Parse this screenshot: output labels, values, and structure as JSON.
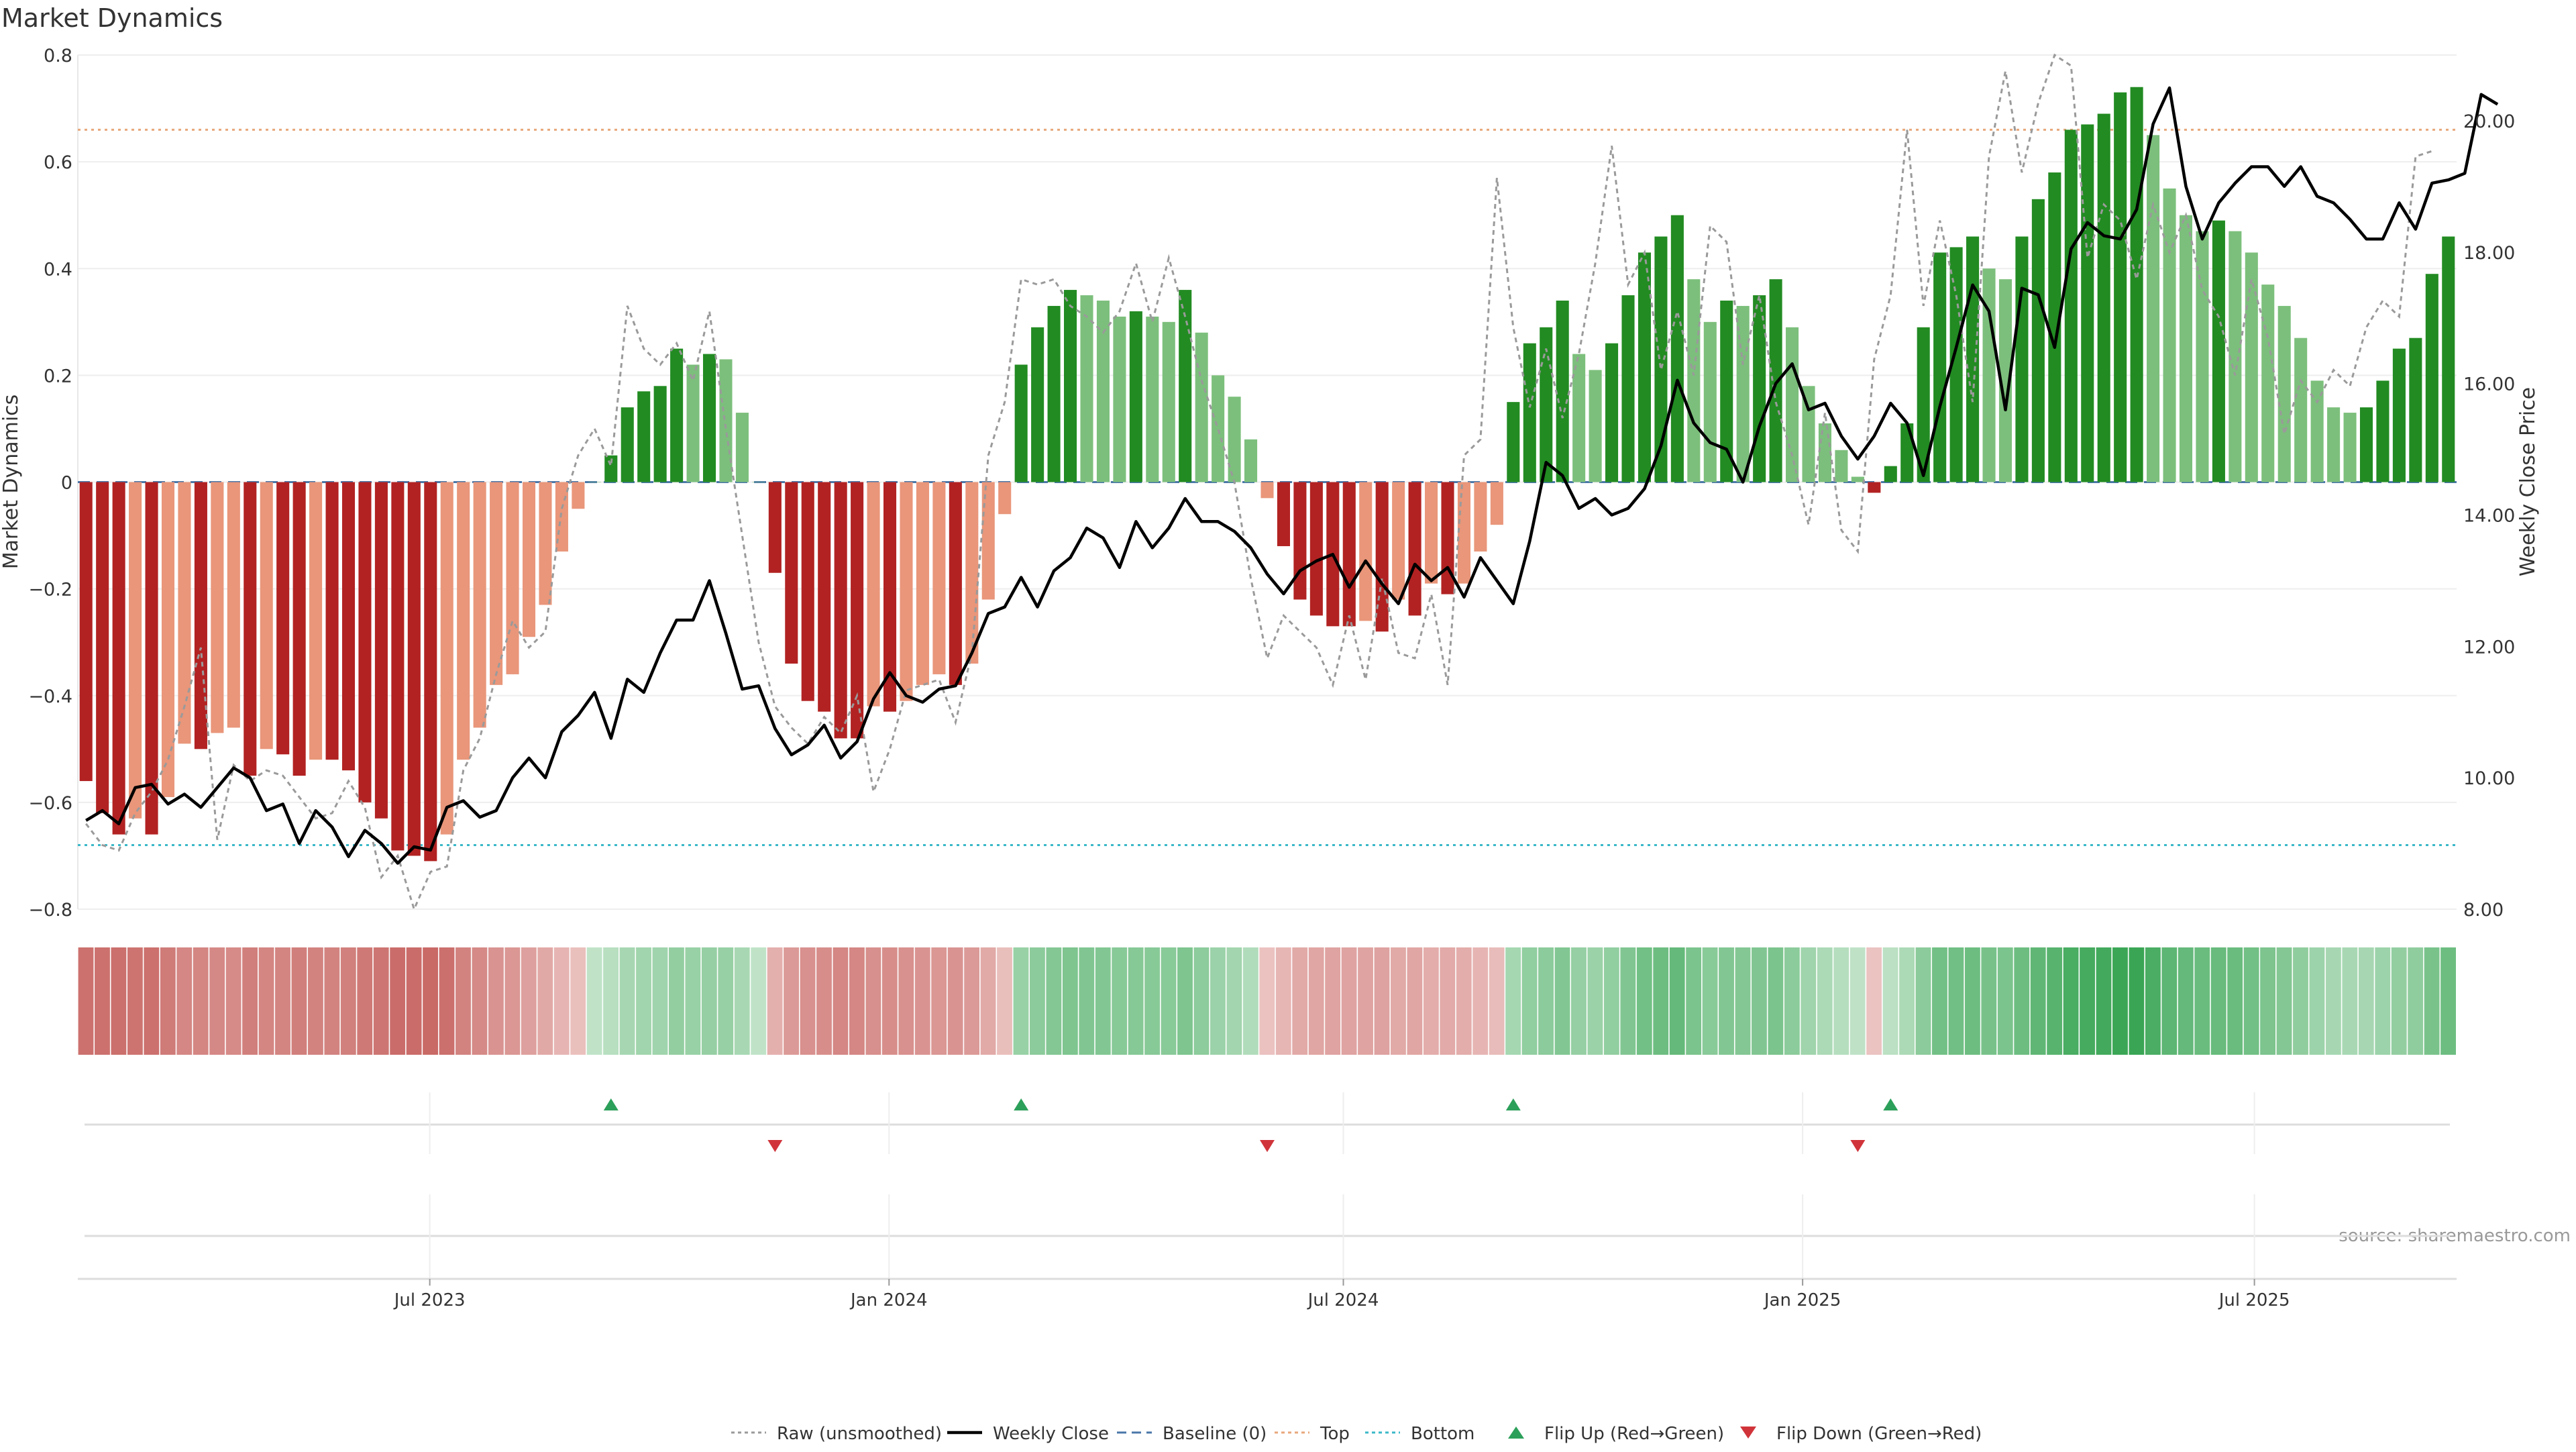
{
  "chart_data": {
    "type": "bar",
    "title": "Market Dynamics",
    "ylabel": "Market Dynamics",
    "y2label": "Weekly Close Price",
    "ylim": [
      -0.8,
      0.8
    ],
    "y2lim": [
      8.0,
      21.0
    ],
    "yticks": [
      "0.8",
      "0.6",
      "0.4",
      "0.2",
      "0",
      "−0.2",
      "−0.4",
      "−0.6",
      "−0.8"
    ],
    "y2ticks": [
      "20.00",
      "18.00",
      "16.00",
      "14.00",
      "12.00",
      "10.00",
      "8.00"
    ],
    "xticks": [
      "Jul 2023",
      "Jan 2024",
      "Jul 2024",
      "Jan 2025",
      "Jul 2025"
    ],
    "x_start": "2023-02-10",
    "x_end": "2025-09-20",
    "xtick_dates": [
      "2023-07-01",
      "2024-01-01",
      "2024-07-01",
      "2025-01-01",
      "2025-07-01"
    ],
    "grid": true,
    "legend_position": "bottom-center",
    "source": "source: sharemaestro.com",
    "top_line": 0.66,
    "bottom_line": -0.68,
    "baseline": 0,
    "bars": [
      -0.56,
      -0.62,
      -0.66,
      -0.63,
      -0.66,
      -0.59,
      -0.49,
      -0.5,
      -0.47,
      -0.46,
      -0.55,
      -0.5,
      -0.51,
      -0.55,
      -0.52,
      -0.52,
      -0.54,
      -0.6,
      -0.63,
      -0.69,
      -0.7,
      -0.71,
      -0.66,
      -0.52,
      -0.46,
      -0.38,
      -0.36,
      -0.29,
      -0.23,
      -0.13,
      -0.05,
      0.0,
      0.05,
      0.14,
      0.17,
      0.18,
      0.25,
      0.22,
      0.24,
      0.23,
      0.13,
      0.0,
      -0.17,
      -0.34,
      -0.41,
      -0.43,
      -0.48,
      -0.48,
      -0.42,
      -0.43,
      -0.41,
      -0.38,
      -0.36,
      -0.38,
      -0.34,
      -0.22,
      -0.06,
      0.22,
      0.29,
      0.33,
      0.36,
      0.35,
      0.34,
      0.31,
      0.32,
      0.31,
      0.3,
      0.36,
      0.28,
      0.2,
      0.16,
      0.08,
      -0.03,
      -0.12,
      -0.22,
      -0.25,
      -0.27,
      -0.27,
      -0.26,
      -0.28,
      -0.22,
      -0.25,
      -0.19,
      -0.21,
      -0.19,
      -0.13,
      -0.08,
      0.15,
      0.26,
      0.29,
      0.34,
      0.24,
      0.21,
      0.26,
      0.35,
      0.43,
      0.46,
      0.5,
      0.38,
      0.3,
      0.34,
      0.33,
      0.35,
      0.38,
      0.29,
      0.18,
      0.11,
      0.06,
      0.01,
      -0.02,
      0.03,
      0.11,
      0.29,
      0.43,
      0.44,
      0.46,
      0.4,
      0.38,
      0.46,
      0.53,
      0.58,
      0.66,
      0.67,
      0.69,
      0.73,
      0.74,
      0.65,
      0.55,
      0.5,
      0.47,
      0.49,
      0.47,
      0.43,
      0.37,
      0.33,
      0.27,
      0.19,
      0.14,
      0.13,
      0.14,
      0.19,
      0.25,
      0.27,
      0.39,
      0.46
    ],
    "raw": [
      -0.64,
      -0.68,
      -0.69,
      -0.62,
      -0.58,
      -0.52,
      -0.42,
      -0.31,
      -0.67,
      -0.53,
      -0.56,
      -0.54,
      -0.55,
      -0.59,
      -0.63,
      -0.62,
      -0.56,
      -0.61,
      -0.74,
      -0.7,
      -0.8,
      -0.73,
      -0.72,
      -0.54,
      -0.48,
      -0.36,
      -0.26,
      -0.31,
      -0.28,
      -0.05,
      0.05,
      0.1,
      0.03,
      0.33,
      0.25,
      0.22,
      0.26,
      0.19,
      0.32,
      0.1,
      -0.1,
      -0.3,
      -0.42,
      -0.46,
      -0.49,
      -0.44,
      -0.47,
      -0.4,
      -0.58,
      -0.5,
      -0.39,
      -0.38,
      -0.37,
      -0.45,
      -0.32,
      0.05,
      0.15,
      0.38,
      0.37,
      0.38,
      0.33,
      0.31,
      0.28,
      0.32,
      0.41,
      0.3,
      0.42,
      0.31,
      0.19,
      0.1,
      0.0,
      -0.18,
      -0.33,
      -0.25,
      -0.28,
      -0.31,
      -0.38,
      -0.25,
      -0.37,
      -0.18,
      -0.32,
      -0.33,
      -0.21,
      -0.38,
      0.05,
      0.08,
      0.57,
      0.29,
      0.14,
      0.25,
      0.12,
      0.24,
      0.41,
      0.63,
      0.37,
      0.43,
      0.21,
      0.32,
      0.2,
      0.48,
      0.45,
      0.22,
      0.35,
      0.15,
      0.05,
      -0.08,
      0.13,
      -0.09,
      -0.13,
      0.23,
      0.35,
      0.66,
      0.33,
      0.49,
      0.35,
      0.15,
      0.61,
      0.77,
      0.58,
      0.71,
      0.8,
      0.78,
      0.42,
      0.52,
      0.49,
      0.38,
      0.52,
      0.43,
      0.5,
      0.36,
      0.31,
      0.2,
      0.38,
      0.27,
      0.09,
      0.19,
      0.15,
      0.21,
      0.18,
      0.29,
      0.34,
      0.31,
      0.61,
      0.62
    ],
    "close": [
      9.35,
      9.5,
      9.3,
      9.85,
      9.9,
      9.6,
      9.75,
      9.55,
      9.85,
      10.15,
      10.0,
      9.5,
      9.6,
      9.0,
      9.5,
      9.25,
      8.8,
      9.2,
      9.0,
      8.7,
      8.95,
      8.9,
      9.55,
      9.65,
      9.4,
      9.5,
      10.0,
      10.3,
      10.0,
      10.7,
      10.95,
      11.3,
      10.6,
      11.5,
      11.3,
      11.9,
      12.4,
      12.4,
      13.0,
      12.2,
      11.35,
      11.4,
      10.75,
      10.35,
      10.5,
      10.8,
      10.3,
      10.55,
      11.2,
      11.6,
      11.25,
      11.15,
      11.35,
      11.4,
      11.9,
      12.5,
      12.6,
      13.05,
      12.6,
      13.15,
      13.35,
      13.8,
      13.65,
      13.2,
      13.9,
      13.5,
      13.8,
      14.25,
      13.9,
      13.9,
      13.75,
      13.5,
      13.1,
      12.8,
      13.15,
      13.3,
      13.4,
      12.9,
      13.3,
      12.95,
      12.65,
      13.25,
      13.0,
      13.2,
      12.75,
      13.35,
      13.0,
      12.65,
      13.6,
      14.8,
      14.6,
      14.1,
      14.25,
      14.0,
      14.1,
      14.4,
      15.05,
      16.05,
      15.4,
      15.1,
      15.0,
      14.5,
      15.35,
      16.0,
      16.3,
      15.6,
      15.7,
      15.2,
      14.85,
      15.2,
      15.7,
      15.4,
      14.6,
      15.65,
      16.55,
      17.5,
      17.1,
      15.6,
      17.45,
      17.35,
      16.55,
      18.05,
      18.45,
      18.25,
      18.2,
      18.65,
      19.95,
      20.5,
      19.0,
      18.2,
      18.75,
      19.05,
      19.3,
      19.3,
      19.0,
      19.3,
      18.85,
      18.75,
      18.5,
      18.2,
      18.2,
      18.75,
      18.35,
      19.05,
      19.1,
      19.2,
      20.4,
      20.25
    ],
    "flip_up": [
      32,
      57,
      87,
      110
    ],
    "flip_down": [
      42,
      72,
      108
    ],
    "heat_strengths": [
      0.92,
      0.92,
      0.93,
      0.89,
      0.92,
      0.82,
      0.69,
      0.7,
      0.66,
      0.64,
      0.77,
      0.7,
      0.71,
      0.77,
      0.73,
      0.73,
      0.76,
      0.84,
      0.88,
      0.97,
      0.98,
      1.0,
      0.93,
      0.73,
      0.65,
      0.54,
      0.51,
      0.41,
      0.32,
      0.18,
      0.07,
      0.0,
      0.07,
      0.19,
      0.23,
      0.24,
      0.34,
      0.3,
      0.32,
      0.31,
      0.18,
      0.0,
      0.24,
      0.48,
      0.58,
      0.61,
      0.68,
      0.68,
      0.59,
      0.61,
      0.58,
      0.54,
      0.51,
      0.54,
      0.48,
      0.31,
      0.08,
      0.3,
      0.39,
      0.45,
      0.49,
      0.47,
      0.46,
      0.42,
      0.43,
      0.42,
      0.41,
      0.49,
      0.38,
      0.27,
      0.22,
      0.11,
      0.04,
      0.17,
      0.31,
      0.35,
      0.38,
      0.38,
      0.37,
      0.39,
      0.31,
      0.35,
      0.27,
      0.3,
      0.27,
      0.18,
      0.11,
      0.2,
      0.35,
      0.39,
      0.46,
      0.32,
      0.28,
      0.35,
      0.47,
      0.58,
      0.62,
      0.68,
      0.51,
      0.41,
      0.46,
      0.45,
      0.47,
      0.51,
      0.39,
      0.24,
      0.15,
      0.08,
      0.01,
      0.03,
      0.04,
      0.15,
      0.39,
      0.58,
      0.59,
      0.62,
      0.54,
      0.51,
      0.62,
      0.72,
      0.78,
      0.89,
      0.91,
      0.93,
      0.99,
      1.0,
      0.88,
      0.74,
      0.68,
      0.64,
      0.66,
      0.64,
      0.58,
      0.5,
      0.45,
      0.36,
      0.26,
      0.19,
      0.18,
      0.19,
      0.26,
      0.34,
      0.36,
      0.53,
      0.62
    ],
    "colors": {
      "red_strong": "#b22222",
      "red_weak": "#e9967a",
      "green_strong": "#228b22",
      "green_weak": "#7cbf7c",
      "heat_red": "#c96a67",
      "heat_green": "#3aa655",
      "close_line": "#000000",
      "raw_line": "#9a9a9a",
      "baseline": "#4a77a8",
      "top_line": "#e8a87c",
      "bottom_line": "#3bb8c8",
      "flip_up": "#2ca05a",
      "flip_down": "#d0343a"
    },
    "legend": [
      {
        "label": "Raw (unsmoothed)",
        "kind": "dotted",
        "color": "#9a9a9a"
      },
      {
        "label": "Weekly Close",
        "kind": "solid",
        "color": "#000000"
      },
      {
        "label": "Baseline (0)",
        "kind": "dashed",
        "color": "#4a77a8"
      },
      {
        "label": "Top",
        "kind": "dotted",
        "color": "#e8a87c"
      },
      {
        "label": "Bottom",
        "kind": "dotted",
        "color": "#3bb8c8"
      },
      {
        "label": "Flip Up (Red→Green)",
        "kind": "up",
        "color": "#2ca05a"
      },
      {
        "label": "Flip Down (Green→Red)",
        "kind": "down",
        "color": "#d0343a"
      }
    ]
  }
}
